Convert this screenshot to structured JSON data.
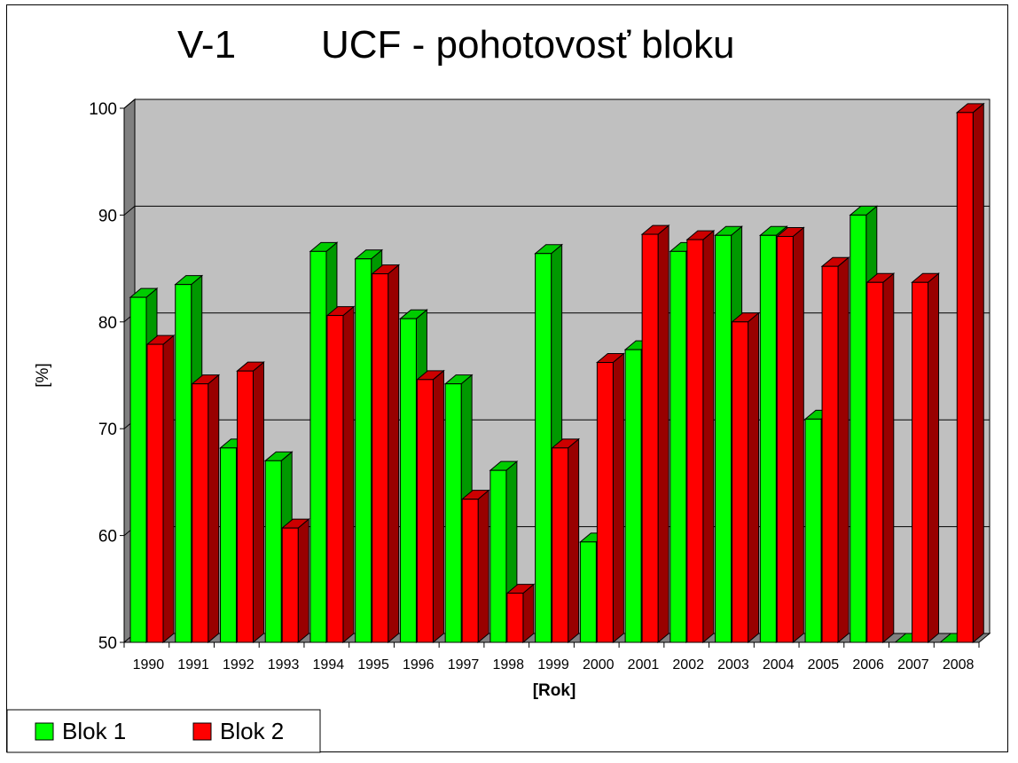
{
  "chart_data": {
    "type": "bar",
    "title_prefix": "V-1",
    "title": "UCF - pohotovosť bloku",
    "xlabel": "[Rok]",
    "ylabel": "[%]",
    "ylim": [
      50,
      100
    ],
    "yticks": [
      50,
      60,
      70,
      80,
      90,
      100
    ],
    "grid": true,
    "legend_position": "bottom-left",
    "categories": [
      "1990",
      "1991",
      "1992",
      "1993",
      "1994",
      "1995",
      "1996",
      "1997",
      "1998",
      "1999",
      "2000",
      "2001",
      "2002",
      "2003",
      "2004",
      "2005",
      "2006",
      "2007",
      "2008"
    ],
    "series": [
      {
        "name": "Blok 1",
        "color": "#00ff00",
        "side_color": "#009900",
        "top_color": "#00cc00",
        "values": [
          82.3,
          83.5,
          68.2,
          67.0,
          86.6,
          85.9,
          80.3,
          74.2,
          66.1,
          86.4,
          59.4,
          77.4,
          86.6,
          88.1,
          88.1,
          70.9,
          90.0,
          50.0,
          50.0
        ]
      },
      {
        "name": "Blok 2",
        "color": "#ff0000",
        "side_color": "#990000",
        "top_color": "#cc0000",
        "values": [
          77.9,
          74.2,
          75.4,
          60.7,
          80.6,
          84.5,
          74.6,
          63.4,
          54.6,
          68.2,
          76.2,
          88.2,
          87.7,
          80.0,
          88.0,
          85.2,
          83.7,
          83.7,
          99.6
        ]
      }
    ]
  }
}
